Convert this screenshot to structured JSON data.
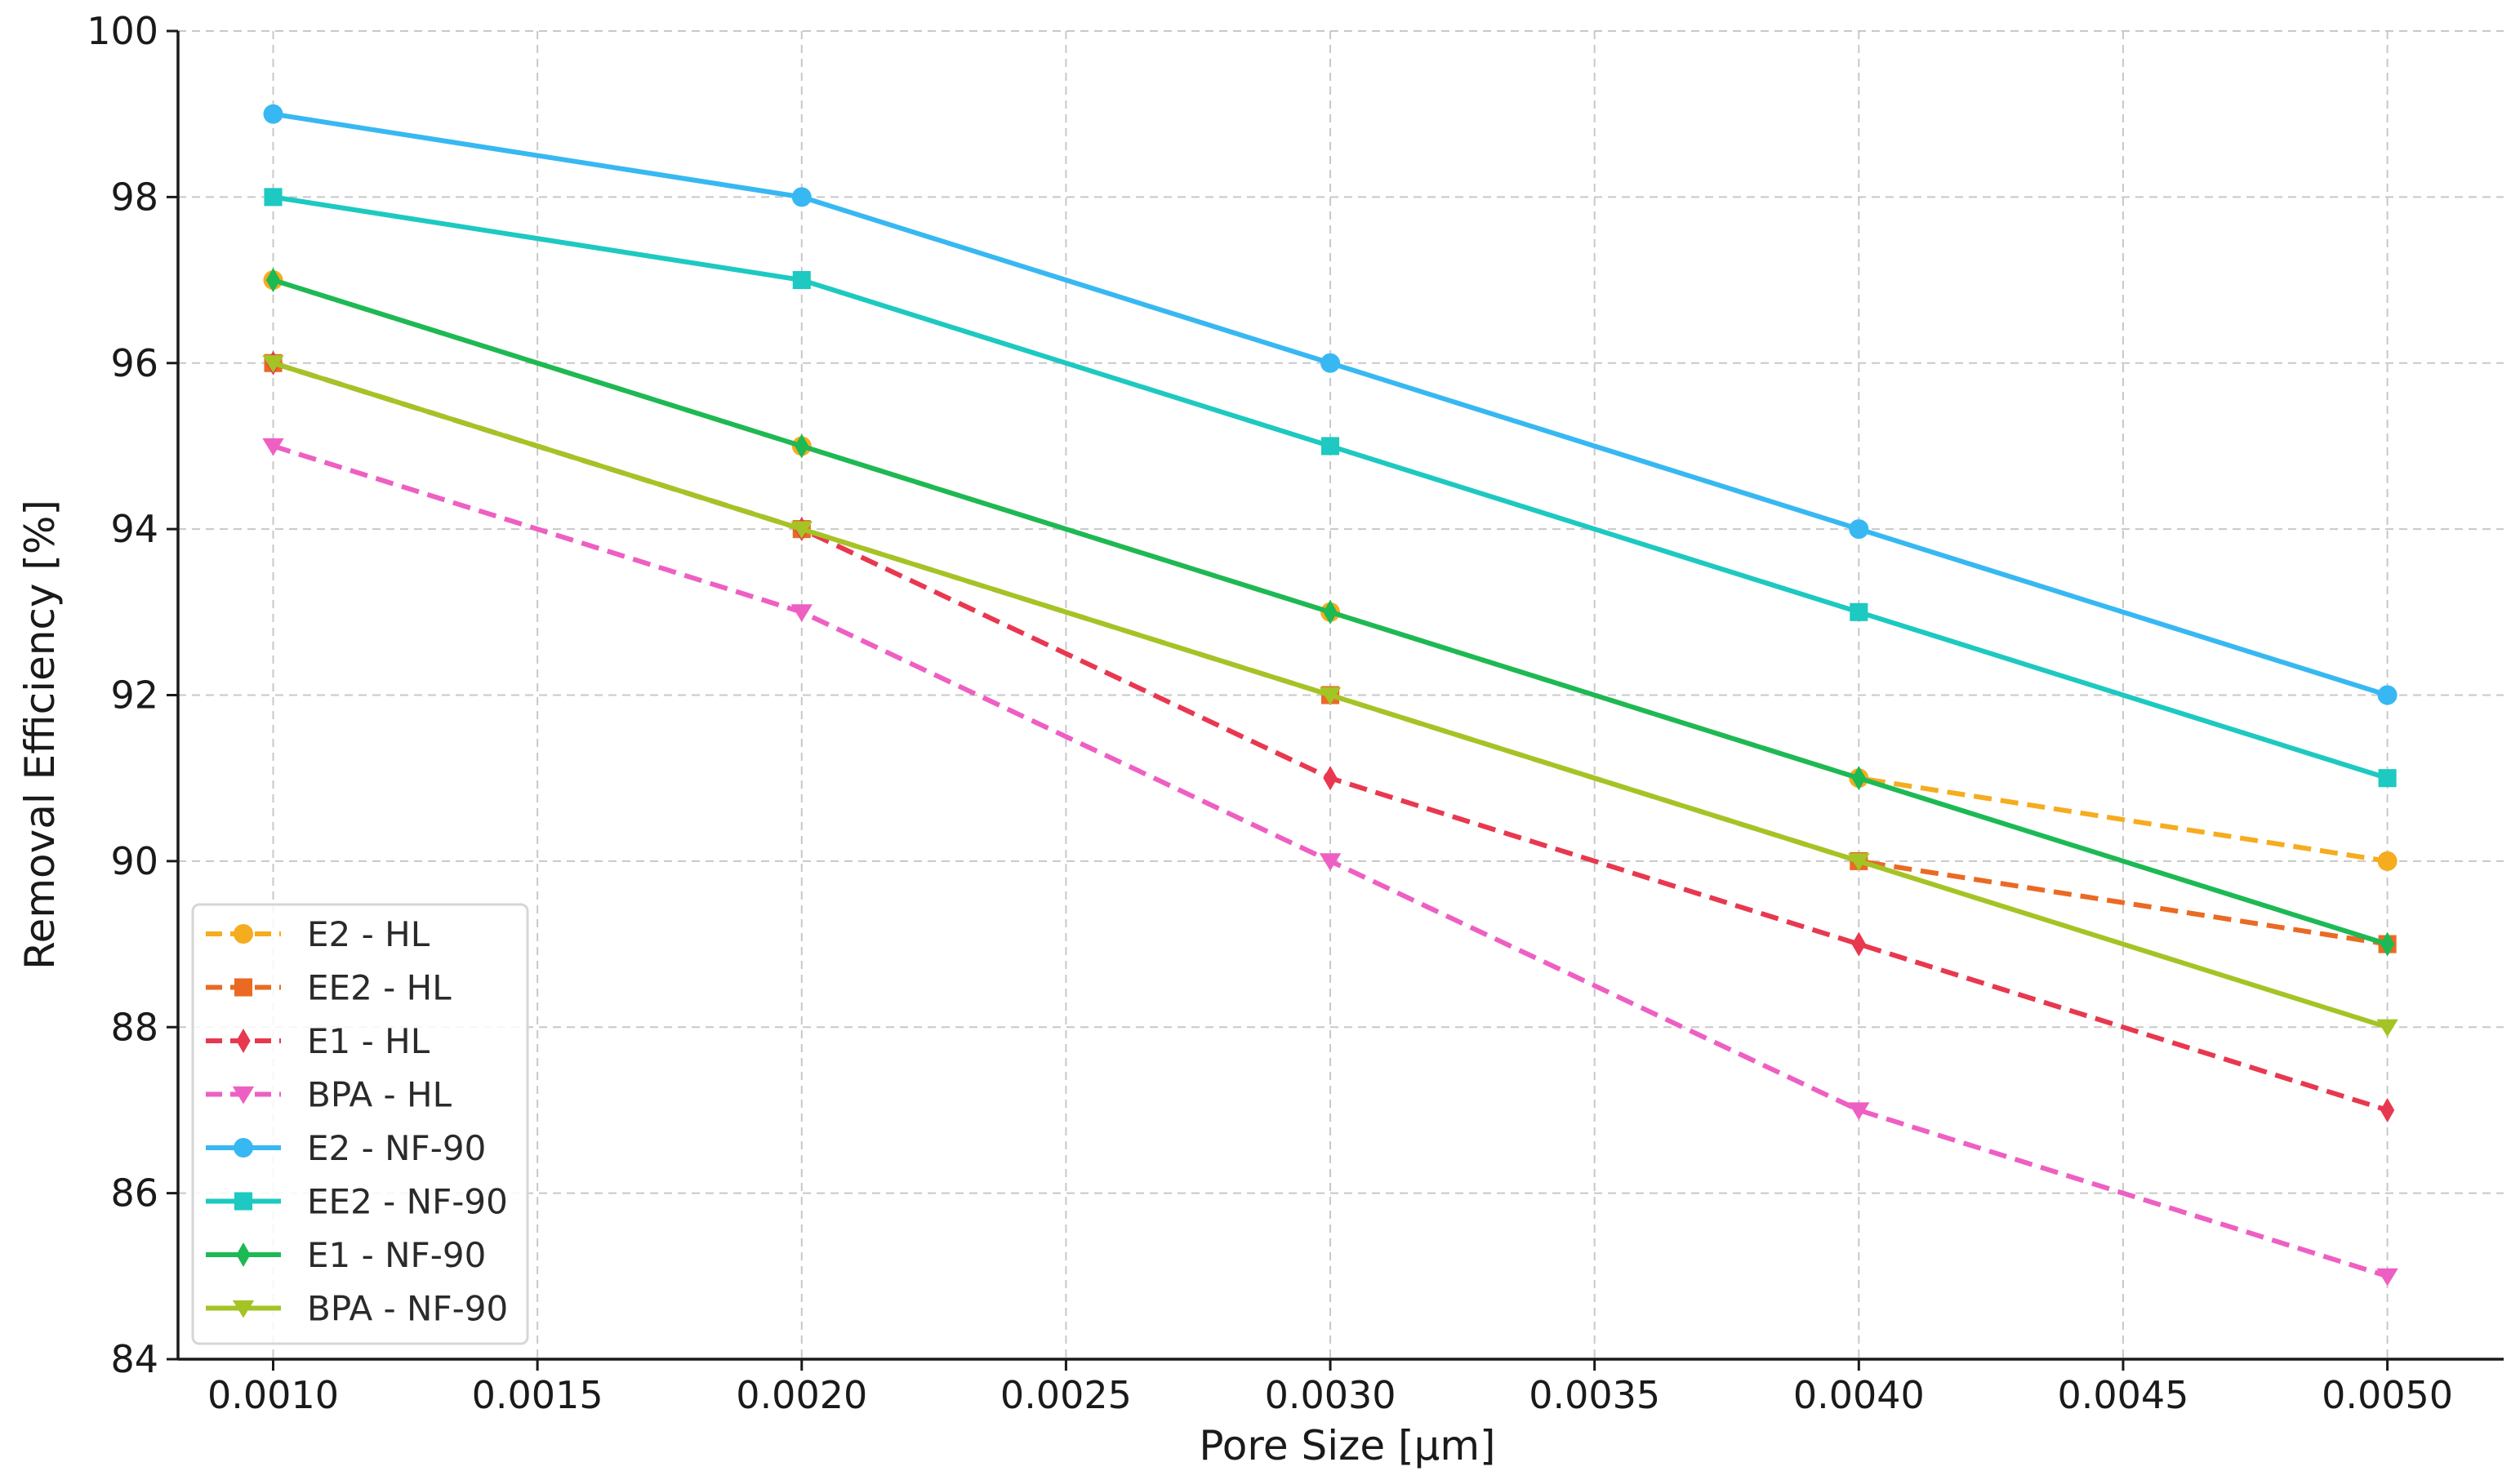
{
  "chart_data": {
    "type": "line",
    "title": "",
    "xlabel": "Pore Size [µm]",
    "ylabel": "Removal Efficiency [%]",
    "x": [
      0.001,
      0.002,
      0.003,
      0.004,
      0.005
    ],
    "xlim": [
      0.00082,
      0.00522
    ],
    "ylim": [
      84,
      100
    ],
    "x_ticks": [
      "0.0010",
      "0.0015",
      "0.0020",
      "0.0025",
      "0.0030",
      "0.0035",
      "0.0040",
      "0.0045",
      "0.0050"
    ],
    "x_tick_values": [
      0.001,
      0.0015,
      0.002,
      0.0025,
      0.003,
      0.0035,
      0.004,
      0.0045,
      0.005
    ],
    "y_ticks": [
      "84",
      "86",
      "88",
      "90",
      "92",
      "94",
      "96",
      "98",
      "100"
    ],
    "y_tick_values": [
      84,
      86,
      88,
      90,
      92,
      94,
      96,
      98,
      100
    ],
    "grid": true,
    "legend_position": "lower-left",
    "series": [
      {
        "name": "E2 - HL",
        "values": [
          97,
          95,
          93,
          91,
          90
        ],
        "color": "#f5ac1e",
        "dashed": true,
        "marker": "circle"
      },
      {
        "name": "EE2 - HL",
        "values": [
          96,
          94,
          92,
          90,
          89
        ],
        "color": "#ea6a24",
        "dashed": true,
        "marker": "square"
      },
      {
        "name": "E1 - HL",
        "values": [
          96,
          94,
          91,
          89,
          87
        ],
        "color": "#e8384f",
        "dashed": true,
        "marker": "diamond"
      },
      {
        "name": "BPA - HL",
        "values": [
          95,
          93,
          90,
          87,
          85
        ],
        "color": "#ee5fc3",
        "dashed": true,
        "marker": "triangle-down"
      },
      {
        "name": "E2 - NF-90",
        "values": [
          99,
          98,
          96,
          94,
          92
        ],
        "color": "#38b8f2",
        "dashed": false,
        "marker": "circle"
      },
      {
        "name": "EE2 - NF-90",
        "values": [
          98,
          97,
          95,
          93,
          91
        ],
        "color": "#1dc9c0",
        "dashed": false,
        "marker": "square"
      },
      {
        "name": "E1 - NF-90",
        "values": [
          97,
          95,
          93,
          91,
          89
        ],
        "color": "#1db954",
        "dashed": false,
        "marker": "diamond"
      },
      {
        "name": "BPA - NF-90",
        "values": [
          96,
          94,
          92,
          90,
          88
        ],
        "color": "#a4c425",
        "dashed": false,
        "marker": "triangle-down"
      }
    ]
  }
}
